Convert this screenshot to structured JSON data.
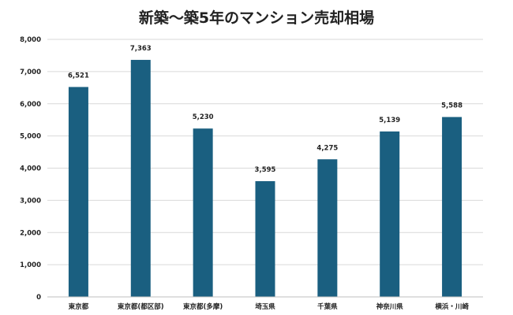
{
  "chart_data": {
    "type": "bar",
    "title": "新築～築5年のマンション売却相場",
    "categories": [
      "東京都",
      "東京都(都区部)",
      "東京都(多摩)",
      "埼玉県",
      "千葉県",
      "神奈川県",
      "横浜・川崎"
    ],
    "values": [
      6521,
      7363,
      5230,
      3595,
      4275,
      5139,
      5588
    ],
    "value_labels": [
      "6,521",
      "7,363",
      "5,230",
      "3,595",
      "4,275",
      "5,139",
      "5,588"
    ],
    "ylim": [
      0,
      8000
    ],
    "y_ticks": [
      0,
      1000,
      2000,
      3000,
      4000,
      5000,
      6000,
      7000,
      8000
    ],
    "y_tick_labels": [
      "0",
      "1,000",
      "2,000",
      "3,000",
      "4,000",
      "5,000",
      "6,000",
      "7,000",
      "8,000"
    ],
    "xlabel": "",
    "ylabel": "",
    "grid": true,
    "bar_color": "#1a5f80",
    "grid_color": "#d9d9d9"
  }
}
